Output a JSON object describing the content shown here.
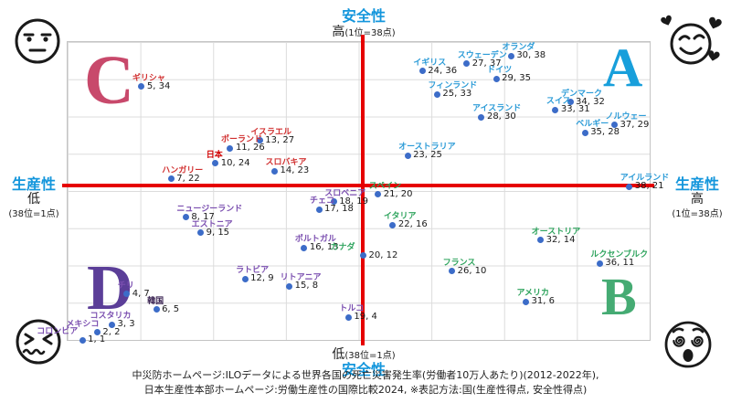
{
  "chart_data": {
    "type": "scatter",
    "note": "国(生産性得点, 安全性得点) quadrant chart, scores 1-38, higher is better",
    "axes": {
      "top_title": "安全性",
      "top_sub_big": "高",
      "top_sub_small": "(1位=38点)",
      "bottom_sub_big": "低",
      "bottom_sub_small": "(38位=1点)",
      "bottom_title": "安全性",
      "left_title": "生産性",
      "left_sub_big": "低",
      "left_sub_small": "(38位=1点)",
      "right_title": "生産性",
      "right_sub_big": "高",
      "right_sub_small": "(1位=38点)"
    },
    "axis_title_color": "#1496dc",
    "xlim": [
      0,
      39.5
    ],
    "ylim": [
      0.8,
      39.8
    ],
    "grid": "8x8 light gray",
    "point_color": "#3c6cc8",
    "crosshair": {
      "x_score": 20,
      "y_score": 21,
      "color": "#e60000"
    },
    "quadrants": [
      {
        "id": "c",
        "letter": "C",
        "color": "#c8496b",
        "position": "top-left"
      },
      {
        "id": "a",
        "letter": "A",
        "color": "#189fdb",
        "position": "top-right"
      },
      {
        "id": "d",
        "letter": "D",
        "color": "#5b3e98",
        "position": "bottom-left"
      },
      {
        "id": "b",
        "letter": "B",
        "color": "#45ab73",
        "position": "bottom-right"
      }
    ],
    "series": [
      {
        "name": "C-quadrant (低生産性・高安全性)",
        "label_color": "#d13030",
        "points": [
          {
            "country": "ギリシャ",
            "x": 5,
            "y": 34
          },
          {
            "country": "イスラエル",
            "x": 13,
            "y": 27
          },
          {
            "country": "ポーランド",
            "x": 11,
            "y": 26
          },
          {
            "country": "日本",
            "x": 10,
            "y": 24,
            "bold": true,
            "color": "#d10000"
          },
          {
            "country": "スロバキア",
            "x": 14,
            "y": 23
          },
          {
            "country": "ハンガリー",
            "x": 7,
            "y": 22
          }
        ]
      },
      {
        "name": "A-quadrant (高生産性・高安全性)",
        "label_color": "#2b9bd7",
        "points": [
          {
            "country": "オランダ",
            "x": 30,
            "y": 38
          },
          {
            "country": "スウェーデン",
            "x": 27,
            "y": 37
          },
          {
            "country": "イギリス",
            "x": 24,
            "y": 36
          },
          {
            "country": "ドイツ",
            "x": 29,
            "y": 35
          },
          {
            "country": "フィンランド",
            "x": 25,
            "y": 33
          },
          {
            "country": "デンマーク",
            "x": 34,
            "y": 32
          },
          {
            "country": "スイス",
            "x": 33,
            "y": 31
          },
          {
            "country": "アイスランド",
            "x": 28,
            "y": 30
          },
          {
            "country": "ノルウェー",
            "x": 37,
            "y": 29
          },
          {
            "country": "ベルギー",
            "x": 35,
            "y": 28
          },
          {
            "country": "オーストラリア",
            "x": 23,
            "y": 25
          },
          {
            "country": "アイルランド",
            "x": 38,
            "y": 21
          }
        ]
      },
      {
        "name": "D-quadrant (低生産性・低安全性)",
        "label_color": "#7b4fb0",
        "points": [
          {
            "country": "スロベニア",
            "x": 18,
            "y": 19
          },
          {
            "country": "チェコ",
            "x": 17,
            "y": 18
          },
          {
            "country": "ニュージーランド",
            "x": 8,
            "y": 17
          },
          {
            "country": "エストニア",
            "x": 9,
            "y": 15
          },
          {
            "country": "ポルトガル",
            "x": 16,
            "y": 13
          },
          {
            "country": "ラトビア",
            "x": 12,
            "y": 9
          },
          {
            "country": "リトアニア",
            "x": 15,
            "y": 8
          },
          {
            "country": "チリ",
            "x": 4,
            "y": 7
          },
          {
            "country": "韓国",
            "x": 6,
            "y": 5,
            "bold": true,
            "color": "#3a2352"
          },
          {
            "country": "トルコ",
            "x": 19,
            "y": 4
          },
          {
            "country": "コスタリカ",
            "x": 3,
            "y": 3,
            "dx": -14
          },
          {
            "country": "メキシコ",
            "x": 2,
            "y": 2,
            "dx": -24
          },
          {
            "country": "コロンビア",
            "x": 1,
            "y": 1,
            "dx": -40
          }
        ]
      },
      {
        "name": "B-quadrant (高生産性・低安全性)",
        "label_color": "#2fa45e",
        "points": [
          {
            "country": "スペイン",
            "x": 21,
            "y": 20
          },
          {
            "country": "イタリア",
            "x": 22,
            "y": 16
          },
          {
            "country": "オーストリア",
            "x": 32,
            "y": 14
          },
          {
            "country": "カナダ",
            "x": 20,
            "y": 12,
            "dx": -26
          },
          {
            "country": "ルクセンブルク",
            "x": 36,
            "y": 11
          },
          {
            "country": "フランス",
            "x": 26,
            "y": 10
          },
          {
            "country": "アメリカ",
            "x": 31,
            "y": 6
          }
        ]
      }
    ]
  },
  "corner_emojis": {
    "top_left": "expressionless-face",
    "top_right": "smiling-face-with-hearts",
    "bottom_left": "quivering-squint-face",
    "bottom_right": "dizzy-face"
  },
  "footer": {
    "line1": "中災防ホームページ:ILOデータによる世界各国の死亡災害発生率(労働者10万人あたり)(2012-2022年),",
    "line2": "日本生産性本部ホームページ:労働生産性の国際比較2024, ※表記方法:国(生産性得点, 安全性得点)"
  }
}
